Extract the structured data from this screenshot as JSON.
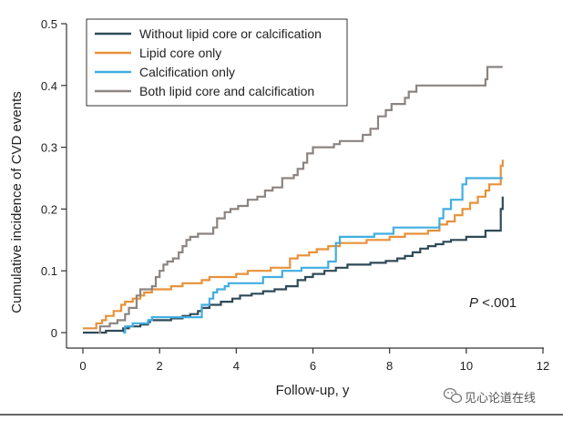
{
  "chart_data": {
    "type": "line",
    "step": true,
    "xlabel": "Follow-up, y",
    "ylabel": "Cumulative incidence of CVD events",
    "xlim": [
      0,
      12
    ],
    "ylim": [
      0,
      0.5
    ],
    "xticks": [
      0,
      2,
      4,
      6,
      8,
      10,
      12
    ],
    "yticks": [
      0,
      0.1,
      0.2,
      0.3,
      0.4,
      0.5
    ],
    "xtick_labels": [
      "0",
      "2",
      "4",
      "6",
      "8",
      "10",
      "12"
    ],
    "ytick_labels": [
      "0",
      "0.1",
      "0.2",
      "0.3",
      "0.4",
      "0.5"
    ],
    "legend_position": "top-left",
    "annotation": {
      "italic": "P",
      "text": " <.001"
    },
    "series": [
      {
        "name": "Without lipid core or calcification",
        "color": "#2f4a57",
        "points": [
          [
            0,
            0
          ],
          [
            0.55,
            0
          ],
          [
            0.6,
            0.003
          ],
          [
            1.0,
            0.003
          ],
          [
            1.05,
            0.007
          ],
          [
            1.2,
            0.01
          ],
          [
            1.5,
            0.013
          ],
          [
            1.7,
            0.017
          ],
          [
            1.75,
            0.02
          ],
          [
            2.3,
            0.023
          ],
          [
            2.6,
            0.027
          ],
          [
            2.8,
            0.03
          ],
          [
            3.0,
            0.035
          ],
          [
            3.1,
            0.04
          ],
          [
            3.3,
            0.045
          ],
          [
            3.6,
            0.05
          ],
          [
            3.9,
            0.055
          ],
          [
            4.1,
            0.06
          ],
          [
            4.4,
            0.063
          ],
          [
            4.7,
            0.067
          ],
          [
            5.0,
            0.07
          ],
          [
            5.3,
            0.075
          ],
          [
            5.6,
            0.085
          ],
          [
            5.8,
            0.09
          ],
          [
            6.0,
            0.095
          ],
          [
            6.3,
            0.1
          ],
          [
            6.6,
            0.105
          ],
          [
            6.9,
            0.11
          ],
          [
            7.3,
            0.11
          ],
          [
            7.5,
            0.113
          ],
          [
            7.9,
            0.116
          ],
          [
            8.2,
            0.12
          ],
          [
            8.4,
            0.124
          ],
          [
            8.6,
            0.13
          ],
          [
            8.8,
            0.136
          ],
          [
            9.0,
            0.14
          ],
          [
            9.2,
            0.143
          ],
          [
            9.4,
            0.147
          ],
          [
            9.6,
            0.15
          ],
          [
            10.0,
            0.155
          ],
          [
            10.3,
            0.155
          ],
          [
            10.5,
            0.165
          ],
          [
            10.85,
            0.165
          ],
          [
            10.9,
            0.2
          ],
          [
            10.95,
            0.22
          ]
        ]
      },
      {
        "name": "Lipid core only",
        "color": "#e8913a",
        "points": [
          [
            0,
            0.007
          ],
          [
            0.3,
            0.007
          ],
          [
            0.35,
            0.015
          ],
          [
            0.5,
            0.02
          ],
          [
            0.6,
            0.027
          ],
          [
            0.8,
            0.035
          ],
          [
            1.0,
            0.045
          ],
          [
            1.1,
            0.05
          ],
          [
            1.3,
            0.055
          ],
          [
            1.5,
            0.06
          ],
          [
            1.6,
            0.065
          ],
          [
            1.8,
            0.07
          ],
          [
            2.3,
            0.075
          ],
          [
            2.6,
            0.08
          ],
          [
            3.1,
            0.085
          ],
          [
            3.3,
            0.09
          ],
          [
            4.0,
            0.095
          ],
          [
            4.3,
            0.1
          ],
          [
            4.9,
            0.105
          ],
          [
            5.4,
            0.12
          ],
          [
            5.6,
            0.125
          ],
          [
            5.9,
            0.13
          ],
          [
            6.1,
            0.135
          ],
          [
            6.4,
            0.14
          ],
          [
            6.7,
            0.145
          ],
          [
            7.4,
            0.15
          ],
          [
            7.7,
            0.15
          ],
          [
            8.0,
            0.155
          ],
          [
            8.4,
            0.16
          ],
          [
            9.0,
            0.165
          ],
          [
            9.3,
            0.175
          ],
          [
            9.5,
            0.18
          ],
          [
            9.7,
            0.19
          ],
          [
            9.9,
            0.2
          ],
          [
            10.1,
            0.21
          ],
          [
            10.3,
            0.22
          ],
          [
            10.5,
            0.23
          ],
          [
            10.6,
            0.24
          ],
          [
            10.9,
            0.27
          ],
          [
            10.95,
            0.28
          ]
        ]
      },
      {
        "name": "Calcification only",
        "color": "#41aee0",
        "points": [
          [
            1.05,
            0
          ],
          [
            1.1,
            0.01
          ],
          [
            1.3,
            0.015
          ],
          [
            1.7,
            0.02
          ],
          [
            1.8,
            0.025
          ],
          [
            3.1,
            0.045
          ],
          [
            3.3,
            0.055
          ],
          [
            3.4,
            0.065
          ],
          [
            3.5,
            0.07
          ],
          [
            3.7,
            0.075
          ],
          [
            3.8,
            0.08
          ],
          [
            4.7,
            0.09
          ],
          [
            5.2,
            0.1
          ],
          [
            5.7,
            0.105
          ],
          [
            6.4,
            0.115
          ],
          [
            6.6,
            0.145
          ],
          [
            6.7,
            0.155
          ],
          [
            7.6,
            0.16
          ],
          [
            8.1,
            0.17
          ],
          [
            9.3,
            0.185
          ],
          [
            9.4,
            0.2
          ],
          [
            9.6,
            0.215
          ],
          [
            9.9,
            0.24
          ],
          [
            10.0,
            0.25
          ],
          [
            10.95,
            0.25
          ]
        ]
      },
      {
        "name": "Both lipid core and calcification",
        "color": "#8b8480",
        "points": [
          [
            0.4,
            0
          ],
          [
            0.45,
            0.01
          ],
          [
            0.7,
            0.015
          ],
          [
            0.9,
            0.02
          ],
          [
            1.1,
            0.03
          ],
          [
            1.2,
            0.04
          ],
          [
            1.4,
            0.06
          ],
          [
            1.5,
            0.07
          ],
          [
            1.8,
            0.075
          ],
          [
            1.9,
            0.09
          ],
          [
            2.0,
            0.1
          ],
          [
            2.1,
            0.11
          ],
          [
            2.2,
            0.115
          ],
          [
            2.35,
            0.12
          ],
          [
            2.5,
            0.13
          ],
          [
            2.6,
            0.14
          ],
          [
            2.7,
            0.15
          ],
          [
            2.8,
            0.155
          ],
          [
            3.0,
            0.16
          ],
          [
            3.4,
            0.17
          ],
          [
            3.5,
            0.185
          ],
          [
            3.7,
            0.195
          ],
          [
            3.85,
            0.2
          ],
          [
            4.05,
            0.205
          ],
          [
            4.3,
            0.215
          ],
          [
            4.55,
            0.22
          ],
          [
            4.75,
            0.23
          ],
          [
            4.95,
            0.235
          ],
          [
            5.2,
            0.25
          ],
          [
            5.5,
            0.255
          ],
          [
            5.6,
            0.265
          ],
          [
            5.75,
            0.275
          ],
          [
            5.85,
            0.29
          ],
          [
            6.0,
            0.3
          ],
          [
            6.55,
            0.305
          ],
          [
            6.7,
            0.31
          ],
          [
            7.3,
            0.32
          ],
          [
            7.5,
            0.33
          ],
          [
            7.7,
            0.35
          ],
          [
            7.9,
            0.36
          ],
          [
            8.05,
            0.37
          ],
          [
            8.4,
            0.38
          ],
          [
            8.5,
            0.39
          ],
          [
            8.7,
            0.4
          ],
          [
            10.5,
            0.41
          ],
          [
            10.55,
            0.43
          ],
          [
            10.95,
            0.43
          ]
        ]
      }
    ]
  },
  "watermark": {
    "text": "见心论道在线",
    "icon": "wechat-icon"
  }
}
